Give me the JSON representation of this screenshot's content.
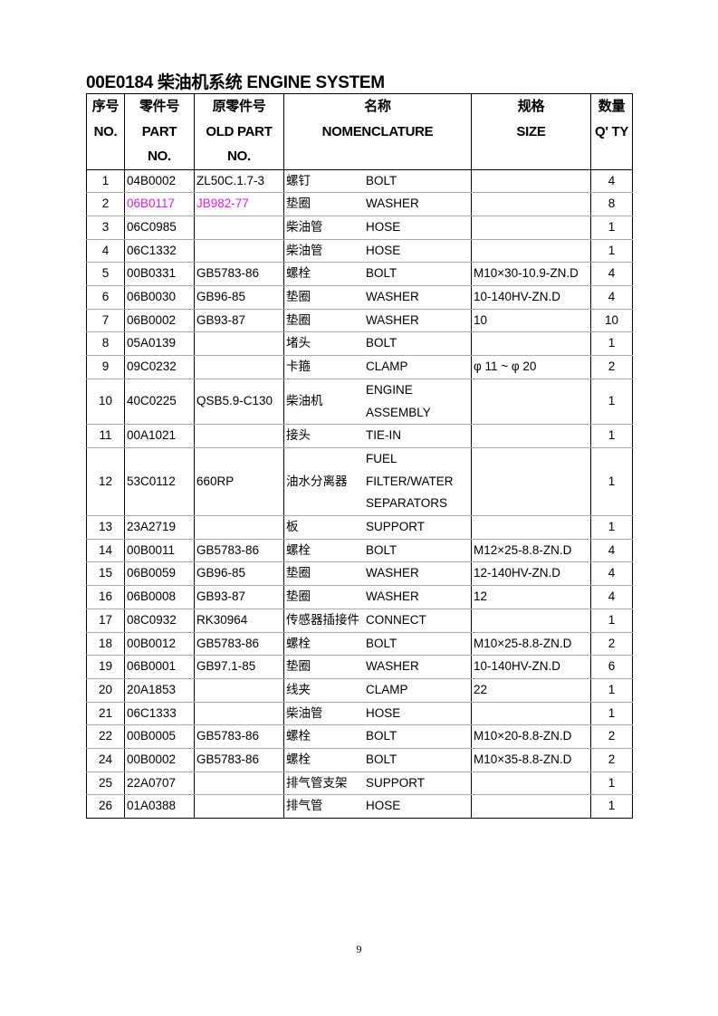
{
  "title": "00E0184  柴油机系统  ENGINE SYSTEM",
  "headers": {
    "no": [
      "序号",
      "NO."
    ],
    "part": [
      "零件号",
      "PART",
      "NO."
    ],
    "old": [
      "原零件号",
      "OLD PART",
      "NO."
    ],
    "nom": [
      "名称",
      "NOMENCLATURE"
    ],
    "size": [
      "规格",
      "SIZE"
    ],
    "qty": [
      "数量",
      "Q' TY"
    ]
  },
  "highlight_color": "#e020e0",
  "rows": [
    {
      "no": "1",
      "part": "04B0002",
      "old": "ZL50C.1.7-3",
      "cn": "螺钉",
      "en": [
        "BOLT"
      ],
      "size": "",
      "qty": "4"
    },
    {
      "no": "2",
      "part": "06B0117",
      "old": "JB982-77",
      "cn": "垫圈",
      "en": [
        "WASHER"
      ],
      "size": "",
      "qty": "8",
      "highlight": true
    },
    {
      "no": "3",
      "part": "06C0985",
      "old": "",
      "cn": "柴油管",
      "en": [
        "HOSE"
      ],
      "size": "",
      "qty": "1"
    },
    {
      "no": "4",
      "part": "06C1332",
      "old": "",
      "cn": "柴油管",
      "en": [
        "HOSE"
      ],
      "size": "",
      "qty": "1"
    },
    {
      "no": "5",
      "part": "00B0331",
      "old": "GB5783-86",
      "cn": "螺栓",
      "en": [
        "BOLT"
      ],
      "size": "M10×30-10.9-ZN.D",
      "qty": "4"
    },
    {
      "no": "6",
      "part": "06B0030",
      "old": "GB96-85",
      "cn": "垫圈",
      "en": [
        "WASHER"
      ],
      "size": "10-140HV-ZN.D",
      "qty": "4"
    },
    {
      "no": "7",
      "part": "06B0002",
      "old": "GB93-87",
      "cn": "垫圈",
      "en": [
        "WASHER"
      ],
      "size": "10",
      "qty": "10"
    },
    {
      "no": "8",
      "part": "05A0139",
      "old": "",
      "cn": "堵头",
      "en": [
        "BOLT"
      ],
      "size": "",
      "qty": "1"
    },
    {
      "no": "9",
      "part": "09C0232",
      "old": "",
      "cn": "卡箍",
      "en": [
        "CLAMP"
      ],
      "size": "φ 11 ~ φ 20",
      "qty": "2"
    },
    {
      "no": "10",
      "part": "40C0225",
      "old": "QSB5.9-C130",
      "cn": "柴油机",
      "en": [
        "ENGINE",
        "ASSEMBLY"
      ],
      "size": "",
      "qty": "1"
    },
    {
      "no": "11",
      "part": "00A1021",
      "old": "",
      "cn": "接头",
      "en": [
        "TIE-IN"
      ],
      "size": "",
      "qty": "1"
    },
    {
      "no": "12",
      "part": "53C0112",
      "old": "660RP",
      "cn": "油水分离器",
      "en": [
        "FUEL",
        "FILTER/WATER",
        "SEPARATORS"
      ],
      "size": "",
      "qty": "1"
    },
    {
      "no": "13",
      "part": "23A2719",
      "old": "",
      "cn": "板",
      "en": [
        "SUPPORT"
      ],
      "size": "",
      "qty": "1"
    },
    {
      "no": "14",
      "part": "00B0011",
      "old": "GB5783-86",
      "cn": "螺栓",
      "en": [
        "BOLT"
      ],
      "size": "M12×25-8.8-ZN.D",
      "qty": "4"
    },
    {
      "no": "15",
      "part": "06B0059",
      "old": "GB96-85",
      "cn": "垫圈",
      "en": [
        "WASHER"
      ],
      "size": "12-140HV-ZN.D",
      "qty": "4"
    },
    {
      "no": "16",
      "part": "06B0008",
      "old": "GB93-87",
      "cn": "垫圈",
      "en": [
        "WASHER"
      ],
      "size": "12",
      "qty": "4"
    },
    {
      "no": "17",
      "part": "08C0932",
      "old": "RK30964",
      "cn": "传感器插接件",
      "en": [
        "CONNECT"
      ],
      "size": "",
      "qty": "1"
    },
    {
      "no": "18",
      "part": "00B0012",
      "old": "GB5783-86",
      "cn": "螺栓",
      "en": [
        "BOLT"
      ],
      "size": "M10×25-8.8-ZN.D",
      "qty": "2"
    },
    {
      "no": "19",
      "part": "06B0001",
      "old": "GB97.1-85",
      "cn": "垫圈",
      "en": [
        "WASHER"
      ],
      "size": "10-140HV-ZN.D",
      "qty": "6"
    },
    {
      "no": "20",
      "part": "20A1853",
      "old": "",
      "cn": "线夹",
      "en": [
        "CLAMP"
      ],
      "size": "22",
      "qty": "1"
    },
    {
      "no": "21",
      "part": "06C1333",
      "old": "",
      "cn": "柴油管",
      "en": [
        "HOSE"
      ],
      "size": "",
      "qty": "1"
    },
    {
      "no": "22",
      "part": "00B0005",
      "old": "GB5783-86",
      "cn": "螺栓",
      "en": [
        "BOLT"
      ],
      "size": "M10×20-8.8-ZN.D",
      "qty": "2"
    },
    {
      "no": "24",
      "part": "00B0002",
      "old": "GB5783-86",
      "cn": "螺栓",
      "en": [
        "BOLT"
      ],
      "size": "M10×35-8.8-ZN.D",
      "qty": "2"
    },
    {
      "no": "25",
      "part": "22A0707",
      "old": "",
      "cn": "排气管支架",
      "en": [
        "SUPPORT"
      ],
      "size": "",
      "qty": "1"
    },
    {
      "no": "26",
      "part": "01A0388",
      "old": "",
      "cn": "排气管",
      "en": [
        "HOSE"
      ],
      "size": "",
      "qty": "1"
    }
  ],
  "page_number": "9"
}
